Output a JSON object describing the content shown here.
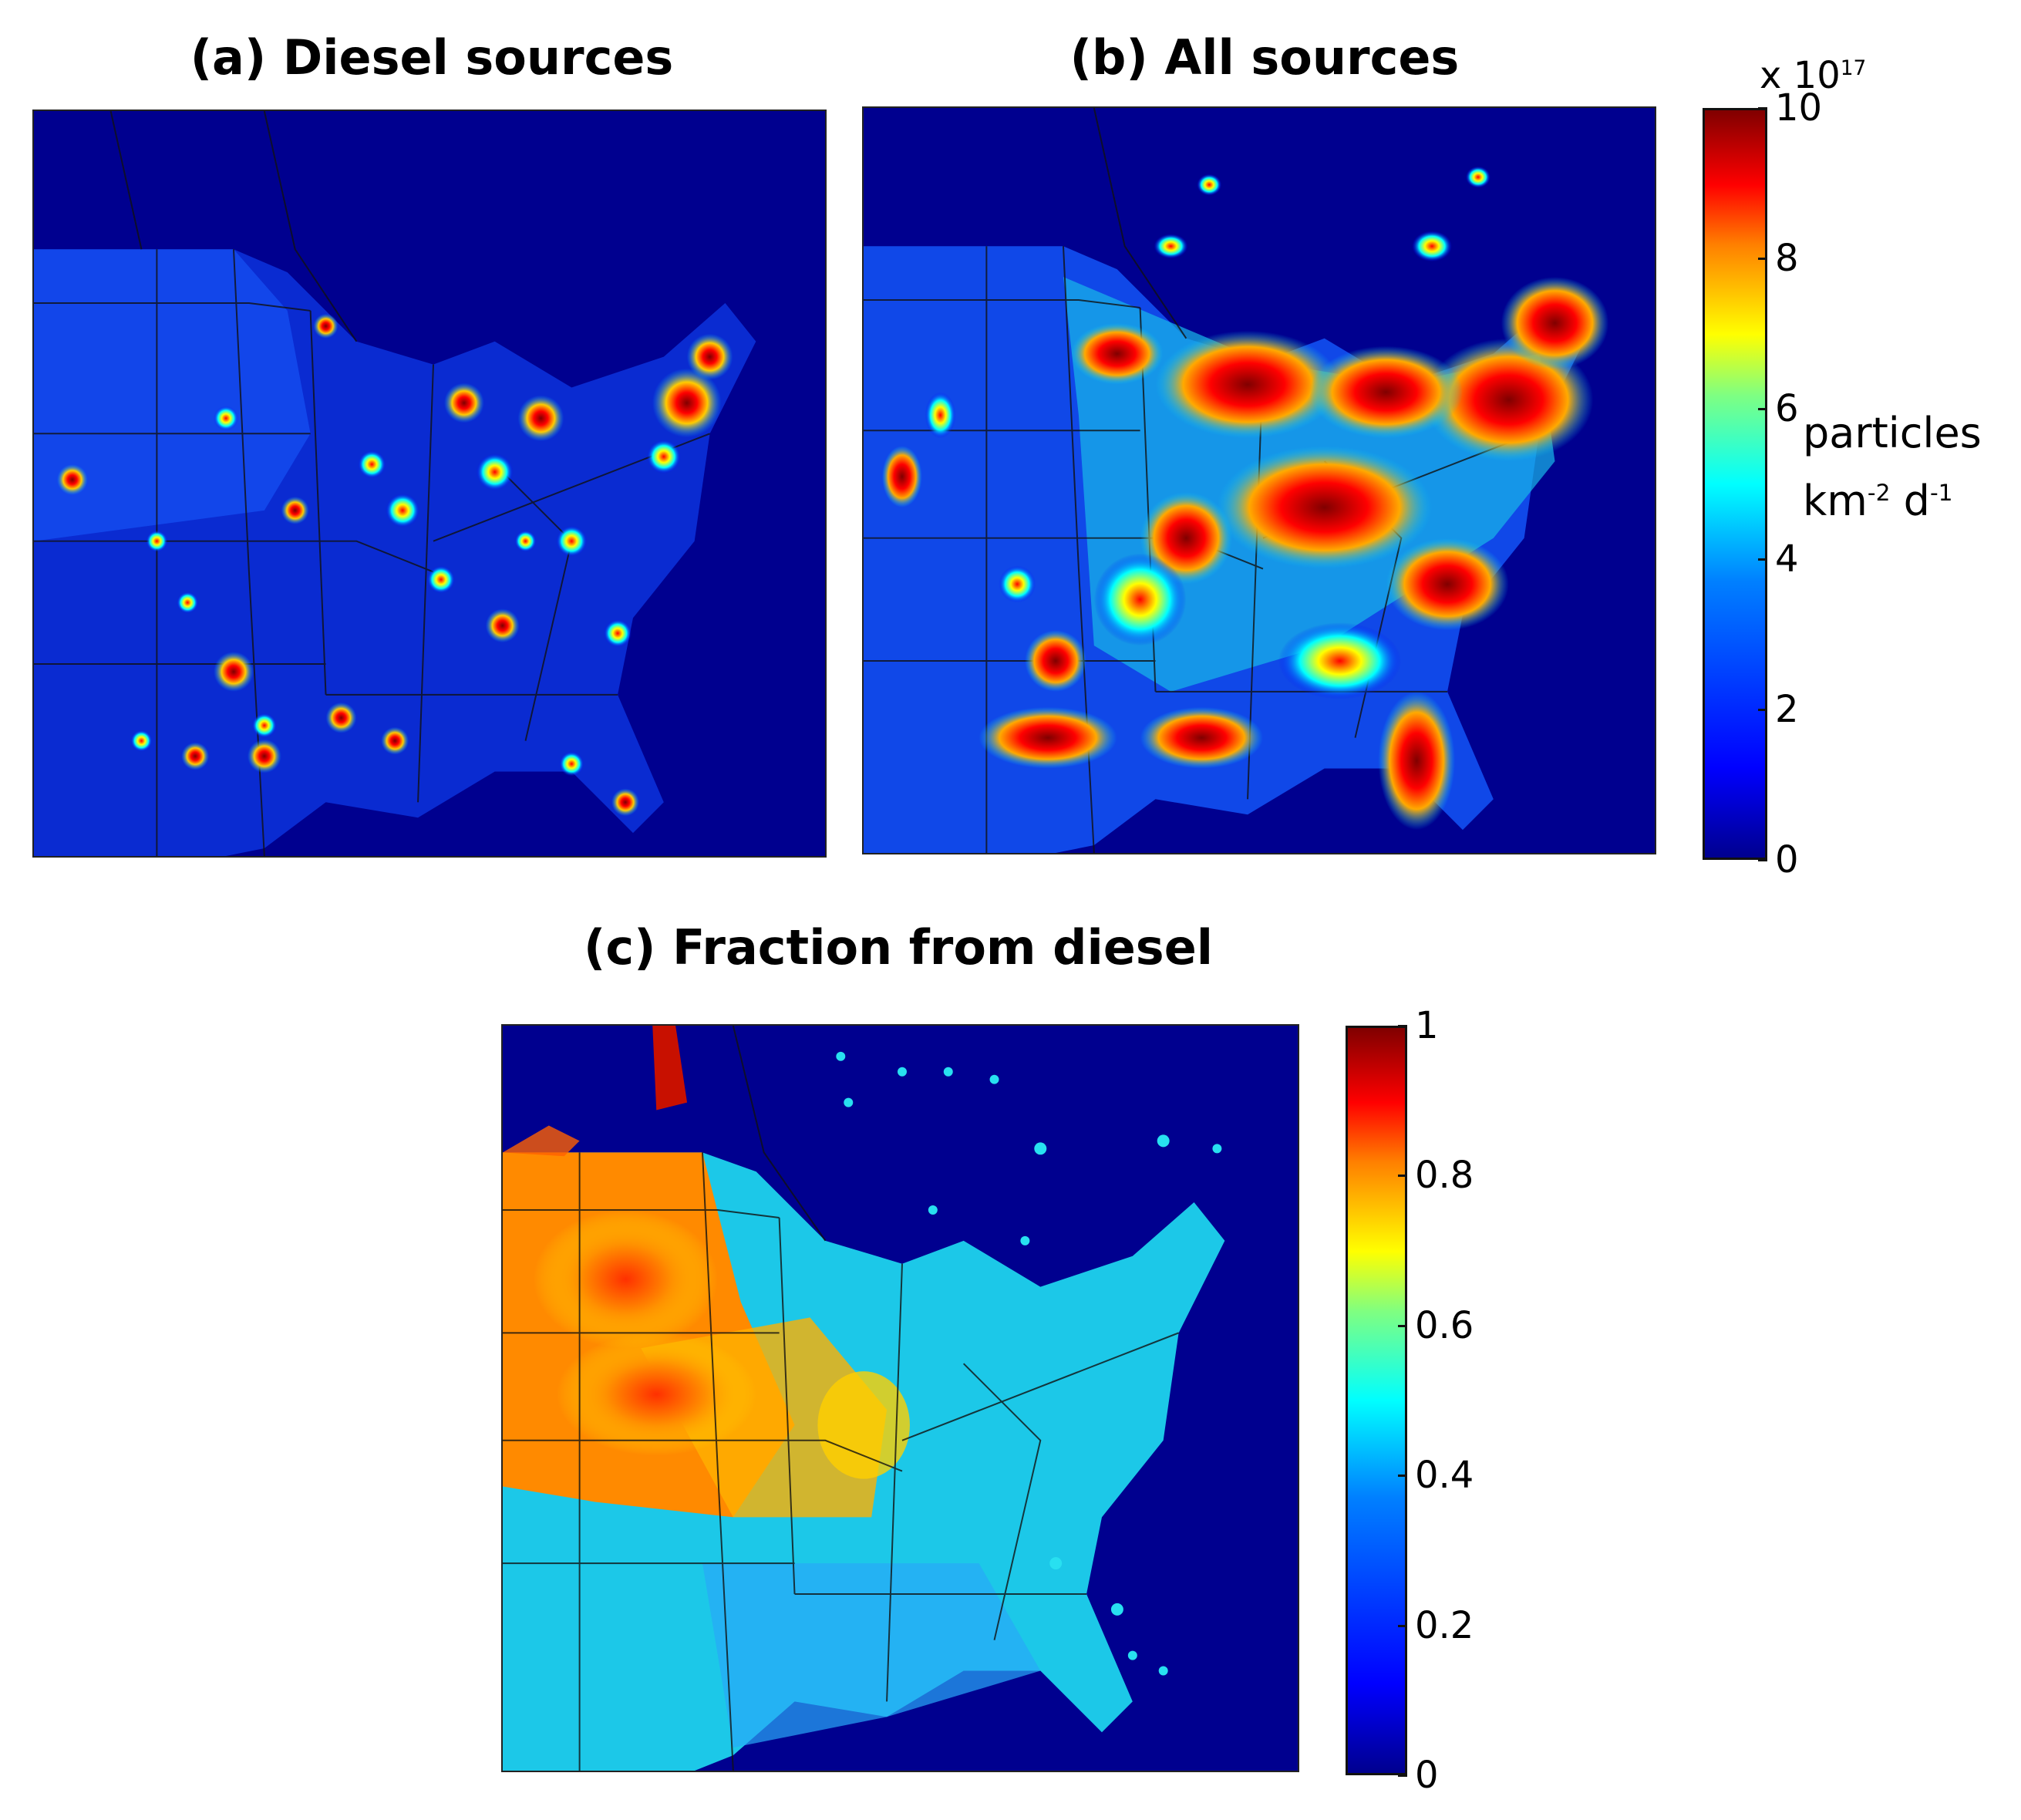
{
  "panels": {
    "a": {
      "title": "(a) Diesel sources"
    },
    "b": {
      "title": "(b) All sources"
    },
    "c": {
      "title": "(c) Fraction from diesel"
    }
  },
  "colorbar_top": {
    "exponent_prefix": "x 10",
    "exponent_power": "17",
    "ticks": [
      "0",
      "2",
      "4",
      "6",
      "8",
      "10"
    ],
    "tick_values": [
      0,
      2,
      4,
      6,
      8,
      10
    ],
    "range": [
      0,
      10
    ],
    "unit_line1": "particles",
    "unit_line2_base": "km",
    "unit_line2_exp1": "-2",
    "unit_line2_mid": " d",
    "unit_line2_exp2": "-1"
  },
  "colorbar_bottom": {
    "ticks": [
      "0",
      "0.2",
      "0.4",
      "0.6",
      "0.8",
      "1"
    ],
    "tick_values": [
      0,
      0.2,
      0.4,
      0.6,
      0.8,
      1
    ],
    "range": [
      0,
      1
    ]
  },
  "colormap": "jet",
  "colors": {
    "ocean_background": "#00008f",
    "jet_low": "#00008f",
    "jet_high": "#800000"
  }
}
